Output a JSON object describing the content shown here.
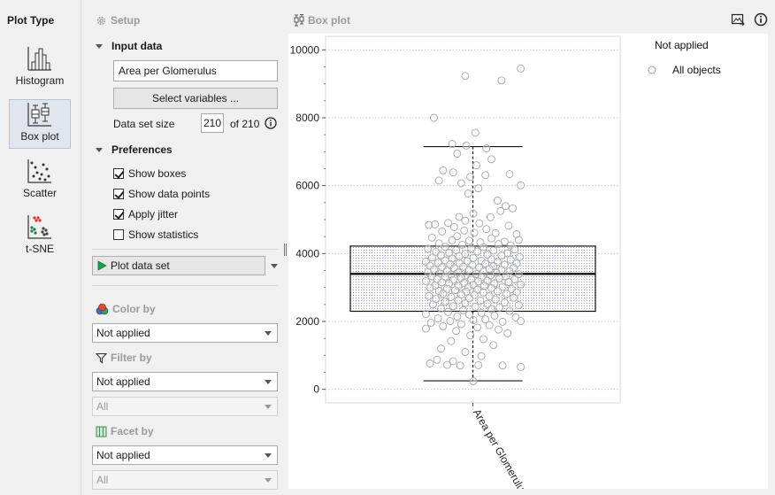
{
  "plot_type_panel": {
    "title": "Plot Type",
    "items": [
      {
        "label": "Histogram",
        "icon": "histogram-icon"
      },
      {
        "label": "Box plot",
        "icon": "box-plot-icon",
        "active": true
      },
      {
        "label": "Scatter",
        "icon": "scatter-icon"
      },
      {
        "label": "t-SNE",
        "icon": "tsne-icon"
      }
    ]
  },
  "setup": {
    "title": "Setup",
    "input_data": {
      "header": "Input data",
      "variable_value": "Area per Glomerulus",
      "select_variables_label": "Select variables ...",
      "data_set_size_label": "Data set size",
      "data_set_size_value": "210",
      "of_total": "of 210"
    },
    "preferences": {
      "header": "Preferences",
      "options": [
        {
          "label": "Show boxes",
          "checked": true
        },
        {
          "label": "Show data points",
          "checked": true
        },
        {
          "label": "Apply jitter",
          "checked": true
        },
        {
          "label": "Show statistics",
          "checked": false
        }
      ]
    },
    "plot_data_set_label": "Plot data set",
    "color_by": {
      "header": "Color by",
      "value": "Not applied"
    },
    "filter_by": {
      "header": "Filter by",
      "value": "Not applied",
      "sub_value": "All"
    },
    "facet_by": {
      "header": "Facet by",
      "value": "Not applied",
      "sub_value": "All"
    }
  },
  "plot": {
    "title": "Box plot",
    "legend_title": "Not applied",
    "legend_item": "All objects"
  },
  "chart_data": {
    "type": "box",
    "categories": [
      "Area per Glomerulus"
    ],
    "ylim": [
      -400,
      10400
    ],
    "yticks": [
      0,
      2000,
      4000,
      6000,
      8000,
      10000
    ],
    "box": {
      "whisker_low": 250,
      "q1": 2300,
      "median": 3400,
      "q3": 4220,
      "whisker_high": 7150
    },
    "points": [
      [
        0.42,
        9230
      ],
      [
        0.78,
        9100
      ],
      [
        0.97,
        9450
      ],
      [
        0.11,
        8000
      ],
      [
        0.52,
        7560
      ],
      [
        0.29,
        7230
      ],
      [
        0.43,
        7180
      ],
      [
        0.63,
        7100
      ],
      [
        0.34,
        6940
      ],
      [
        0.68,
        6780
      ],
      [
        0.2,
        6450
      ],
      [
        0.53,
        6600
      ],
      [
        0.86,
        6340
      ],
      [
        0.3,
        6390
      ],
      [
        0.47,
        6260
      ],
      [
        0.16,
        6150
      ],
      [
        0.62,
        6310
      ],
      [
        0.97,
        6010
      ],
      [
        0.38,
        6070
      ],
      [
        0.55,
        5920
      ],
      [
        0.45,
        5770
      ],
      [
        0.74,
        5560
      ],
      [
        0.82,
        5400
      ],
      [
        0.89,
        5330
      ],
      [
        0.77,
        5250
      ],
      [
        0.5,
        5180
      ],
      [
        0.36,
        5080
      ],
      [
        0.67,
        5070
      ],
      [
        0.42,
        4970
      ],
      [
        0.25,
        4900
      ],
      [
        0.06,
        4840
      ],
      [
        0.12,
        4860
      ],
      [
        0.56,
        4890
      ],
      [
        0.85,
        4820
      ],
      [
        0.31,
        4780
      ],
      [
        0.63,
        4720
      ],
      [
        0.41,
        4680
      ],
      [
        0.19,
        4650
      ],
      [
        0.51,
        4610
      ],
      [
        0.72,
        4600
      ],
      [
        0.93,
        4570
      ],
      [
        0.34,
        4510
      ],
      [
        0.09,
        4470
      ],
      [
        0.68,
        4450
      ],
      [
        0.29,
        4390
      ],
      [
        0.46,
        4380
      ],
      [
        0.81,
        4350
      ],
      [
        0.95,
        4400
      ],
      [
        0.57,
        4330
      ],
      [
        0.16,
        4300
      ],
      [
        0.39,
        4260
      ],
      [
        0.75,
        4280
      ],
      [
        0.87,
        4240
      ],
      [
        0.22,
        4200
      ],
      [
        0.6,
        4190
      ],
      [
        0.05,
        4140
      ],
      [
        0.48,
        4150
      ],
      [
        0.33,
        4100
      ],
      [
        0.91,
        4120
      ],
      [
        0.7,
        4090
      ],
      [
        0.13,
        4050
      ],
      [
        0.54,
        4060
      ],
      [
        0.26,
        4020
      ],
      [
        0.84,
        4010
      ],
      [
        0.42,
        3990
      ],
      [
        0.64,
        3970
      ],
      [
        0.18,
        3950
      ],
      [
        0.78,
        3940
      ],
      [
        0.36,
        3920
      ],
      [
        0.96,
        3900
      ],
      [
        0.09,
        3880
      ],
      [
        0.5,
        3870
      ],
      [
        0.29,
        3850
      ],
      [
        0.68,
        3830
      ],
      [
        0.87,
        3820
      ],
      [
        0.22,
        3800
      ],
      [
        0.58,
        3790
      ],
      [
        0.44,
        3770
      ],
      [
        0.03,
        3760
      ],
      [
        0.74,
        3750
      ],
      [
        0.15,
        3730
      ],
      [
        0.36,
        3720
      ],
      [
        0.93,
        3710
      ],
      [
        0.62,
        3700
      ],
      [
        0.27,
        3680
      ],
      [
        0.81,
        3670
      ],
      [
        0.49,
        3660
      ],
      [
        0.07,
        3640
      ],
      [
        0.7,
        3630
      ],
      [
        0.4,
        3610
      ],
      [
        0.19,
        3600
      ],
      [
        0.56,
        3590
      ],
      [
        0.9,
        3580
      ],
      [
        0.31,
        3570
      ],
      [
        0.66,
        3550
      ],
      [
        0.11,
        3530
      ],
      [
        0.78,
        3520
      ],
      [
        0.46,
        3510
      ],
      [
        0.24,
        3490
      ],
      [
        0.86,
        3480
      ],
      [
        0.6,
        3470
      ],
      [
        0.05,
        3450
      ],
      [
        0.35,
        3440
      ],
      [
        0.73,
        3430
      ],
      [
        0.17,
        3410
      ],
      [
        0.53,
        3400
      ],
      [
        0.95,
        3390
      ],
      [
        0.28,
        3380
      ],
      [
        0.67,
        3360
      ],
      [
        0.42,
        3350
      ],
      [
        0.09,
        3330
      ],
      [
        0.82,
        3320
      ],
      [
        0.22,
        3310
      ],
      [
        0.58,
        3300
      ],
      [
        0.38,
        3280
      ],
      [
        0.76,
        3270
      ],
      [
        0.14,
        3250
      ],
      [
        0.91,
        3240
      ],
      [
        0.48,
        3230
      ],
      [
        0.3,
        3220
      ],
      [
        0.64,
        3200
      ],
      [
        0.03,
        3190
      ],
      [
        0.55,
        3180
      ],
      [
        0.85,
        3160
      ],
      [
        0.19,
        3150
      ],
      [
        0.41,
        3130
      ],
      [
        0.71,
        3120
      ],
      [
        0.26,
        3110
      ],
      [
        0.97,
        3090
      ],
      [
        0.5,
        3080
      ],
      [
        0.12,
        3060
      ],
      [
        0.61,
        3050
      ],
      [
        0.35,
        3040
      ],
      [
        0.79,
        3020
      ],
      [
        0.45,
        3010
      ],
      [
        0.07,
        2990
      ],
      [
        0.68,
        2980
      ],
      [
        0.24,
        2960
      ],
      [
        0.88,
        2950
      ],
      [
        0.54,
        2940
      ],
      [
        0.32,
        2920
      ],
      [
        0.16,
        2900
      ],
      [
        0.74,
        2890
      ],
      [
        0.43,
        2880
      ],
      [
        0.93,
        2860
      ],
      [
        0.6,
        2850
      ],
      [
        0.2,
        2820
      ],
      [
        0.83,
        2810
      ],
      [
        0.38,
        2790
      ],
      [
        0.51,
        2780
      ],
      [
        0.06,
        2750
      ],
      [
        0.66,
        2740
      ],
      [
        0.28,
        2720
      ],
      [
        0.9,
        2700
      ],
      [
        0.46,
        2680
      ],
      [
        0.13,
        2660
      ],
      [
        0.72,
        2650
      ],
      [
        0.35,
        2620
      ],
      [
        0.57,
        2610
      ],
      [
        0.22,
        2580
      ],
      [
        0.81,
        2560
      ],
      [
        0.42,
        2540
      ],
      [
        0.64,
        2520
      ],
      [
        0.1,
        2500
      ],
      [
        0.95,
        2480
      ],
      [
        0.3,
        2450
      ],
      [
        0.52,
        2430
      ],
      [
        0.76,
        2410
      ],
      [
        0.18,
        2380
      ],
      [
        0.68,
        2360
      ],
      [
        0.4,
        2330
      ],
      [
        0.86,
        2310
      ],
      [
        0.25,
        2280
      ],
      [
        0.58,
        2250
      ],
      [
        0.03,
        2220
      ],
      [
        0.46,
        2200
      ],
      [
        0.71,
        2170
      ],
      [
        0.34,
        2140
      ],
      [
        0.92,
        2120
      ],
      [
        0.15,
        2090
      ],
      [
        0.62,
        2060
      ],
      [
        0.5,
        2040
      ],
      [
        0.27,
        2010
      ],
      [
        0.79,
        1990
      ],
      [
        0.08,
        1960
      ],
      [
        0.38,
        1920
      ],
      [
        0.66,
        1890
      ],
      [
        0.97,
        2010
      ],
      [
        0.2,
        1860
      ],
      [
        0.54,
        1820
      ],
      [
        0.03,
        1790
      ],
      [
        0.75,
        1760
      ],
      [
        0.33,
        1720
      ],
      [
        0.84,
        1650
      ],
      [
        0.47,
        1590
      ],
      [
        0.6,
        1480
      ],
      [
        0.28,
        1420
      ],
      [
        0.7,
        1300
      ],
      [
        0.18,
        1200
      ],
      [
        0.42,
        1100
      ],
      [
        0.58,
        980
      ],
      [
        0.14,
        870
      ],
      [
        0.3,
        830
      ],
      [
        0.07,
        760
      ],
      [
        0.24,
        720
      ],
      [
        0.37,
        700
      ],
      [
        0.55,
        710
      ],
      [
        0.79,
        700
      ],
      [
        0.97,
        660
      ],
      [
        0.5,
        240
      ]
    ]
  }
}
